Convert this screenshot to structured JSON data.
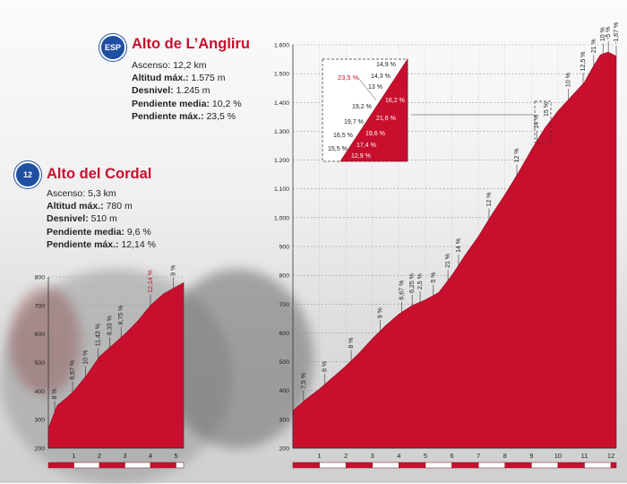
{
  "angliru": {
    "title": "Alto de L’Angliru",
    "badge": "ESP",
    "ascenso_label": "Ascenso:",
    "ascenso": "12,2 km",
    "altitud_label": "Altitud máx.:",
    "altitud": "1.575 m",
    "desnivel_label": "Desnivel:",
    "desnivel": "1.245 m",
    "media_label": "Pendiente media:",
    "media": "10,2 %",
    "max_label": "Pendiente máx.:",
    "max": "23,5 %"
  },
  "cordal": {
    "title": "Alto del Cordal",
    "badge": "12",
    "ascenso_label": "Ascenso:",
    "ascenso": "5,3 km",
    "altitud_label": "Altitud máx.:",
    "altitud": "780 m",
    "desnivel_label": "Desnivel:",
    "desnivel": "510 m",
    "media_label": "Pendiente media:",
    "media": "9,6 %",
    "max_label": "Pendiente máx.:",
    "max": "12,14 %"
  },
  "colors": {
    "fill": "#c8102e",
    "accent": "#c8102e",
    "text": "#222222"
  },
  "chart_data": [
    {
      "type": "area",
      "name": "Alto del Cordal",
      "x": [
        0,
        0.35,
        0.7,
        1.0,
        1.5,
        2.0,
        2.5,
        3.0,
        3.5,
        4.0,
        4.5,
        5.3
      ],
      "y": [
        270,
        350,
        375,
        400,
        455,
        520,
        560,
        600,
        645,
        700,
        740,
        780
      ],
      "xlim": [
        0,
        5.3
      ],
      "ylim": [
        200,
        800
      ],
      "yticks": [
        "200",
        "300",
        "400",
        "500",
        "600",
        "700",
        "800"
      ],
      "xticks": [
        "1",
        "2",
        "3",
        "4",
        "5"
      ],
      "grid": true,
      "gradient_labels": [
        {
          "km": 0.25,
          "label": "8 %",
          "highlight": false
        },
        {
          "km": 0.95,
          "label": "6,67 %",
          "highlight": false
        },
        {
          "km": 1.45,
          "label": "10 %",
          "highlight": false
        },
        {
          "km": 1.95,
          "label": "11,43 %",
          "highlight": false
        },
        {
          "km": 2.4,
          "label": "8,33 %",
          "highlight": false
        },
        {
          "km": 2.85,
          "label": "8,75 %",
          "highlight": false
        },
        {
          "km": 4.0,
          "label": "12,14 %",
          "highlight": true
        },
        {
          "km": 4.9,
          "label": "9 %",
          "highlight": false
        }
      ]
    },
    {
      "type": "area",
      "name": "Alto de L’Angliru",
      "x": [
        0,
        0.5,
        1.0,
        1.5,
        2.0,
        2.5,
        3.0,
        3.5,
        4.0,
        4.5,
        5.0,
        5.5,
        6.0,
        6.5,
        7.0,
        7.5,
        8.0,
        8.5,
        9.0,
        9.5,
        10.0,
        10.5,
        11.0,
        11.3,
        11.6,
        11.9,
        12.2
      ],
      "y": [
        330,
        370,
        405,
        445,
        485,
        530,
        580,
        625,
        665,
        695,
        715,
        740,
        800,
        870,
        935,
        1010,
        1080,
        1155,
        1235,
        1310,
        1370,
        1420,
        1470,
        1520,
        1565,
        1575,
        1560
      ],
      "xlim": [
        0,
        12.2
      ],
      "ylim": [
        200,
        1600
      ],
      "yticks": [
        "200",
        "300",
        "400",
        "500",
        "600",
        "700",
        "800",
        "900",
        "1.000",
        "1.100",
        "1.200",
        "1.300",
        "1.400",
        "1.500",
        "1.600"
      ],
      "xticks": [
        "1",
        "2",
        "3",
        "4",
        "5",
        "6",
        "7",
        "8",
        "9",
        "10",
        "11",
        "12"
      ],
      "grid": true,
      "gradient_labels": [
        {
          "km": 0.4,
          "label": "7,5 %"
        },
        {
          "km": 1.2,
          "label": "8 %"
        },
        {
          "km": 2.2,
          "label": "8 %"
        },
        {
          "km": 3.3,
          "label": "9 %"
        },
        {
          "km": 4.1,
          "label": "6,67 %"
        },
        {
          "km": 4.5,
          "label": "6,25 %"
        },
        {
          "km": 4.8,
          "label": "2,5 %"
        },
        {
          "km": 5.3,
          "label": "5 %"
        },
        {
          "km": 5.85,
          "label": "21 %"
        },
        {
          "km": 6.25,
          "label": "14 %"
        },
        {
          "km": 7.4,
          "label": "12 %"
        },
        {
          "km": 8.45,
          "label": "12 %"
        },
        {
          "km": 9.2,
          "label": "14 %"
        },
        {
          "km": 10.4,
          "label": "10 %"
        },
        {
          "km": 10.95,
          "label": "12,5 %"
        },
        {
          "km": 11.35,
          "label": "21 %"
        },
        {
          "km": 11.7,
          "label": "10 %"
        },
        {
          "km": 11.9,
          "label": "-5 %"
        },
        {
          "km": 12.2,
          "label": "-1,67 %"
        }
      ],
      "detail_marker_label": "15 %",
      "inset": {
        "labels": [
          "14,9 %",
          "14,3 %",
          "13 %",
          "16,2 %",
          "19,2 %",
          "21,6 %",
          "19,7 %",
          "19,6 %",
          "16,5 %",
          "17,4 %",
          "15,5 %",
          "12,9 %"
        ],
        "max_label": "23,5 %"
      }
    }
  ]
}
